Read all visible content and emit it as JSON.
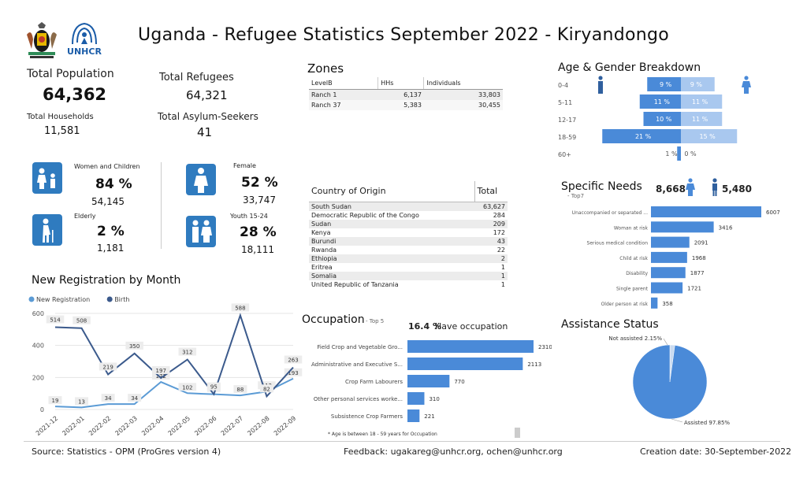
{
  "header": {
    "title": "Uganda - Refugee Statistics September 2022 - Kiryandongo",
    "logo_unhcr": "UNHCR"
  },
  "kpis": {
    "total_population_label": "Total Population",
    "total_population": "64,362",
    "total_refugees_label": "Total Refugees",
    "total_refugees": "64,321",
    "total_households_label": "Total Households",
    "total_households": "11,581",
    "asylum_label": "Total Asylum-Seekers",
    "asylum": "41"
  },
  "groups": {
    "women_children_label": "Women and Children",
    "women_children_pct": "84 %",
    "women_children_count": "54,145",
    "elderly_label": "Elderly",
    "elderly_pct": "2 %",
    "elderly_count": "1,181",
    "female_label": "Female",
    "female_pct": "52 %",
    "female_count": "33,747",
    "youth_label": "Youth 15-24",
    "youth_pct": "28 %",
    "youth_count": "18,111"
  },
  "zones": {
    "title": "Zones",
    "headers": [
      "LevelB",
      "HHs",
      "Individuals"
    ],
    "rows": [
      [
        "Ranch 1",
        "6,137",
        "33,803"
      ],
      [
        "Ranch 37",
        "5,383",
        "30,455"
      ]
    ]
  },
  "origin": {
    "headers": [
      "Country of Origin",
      "Total"
    ],
    "rows": [
      [
        "South Sudan",
        "63,627"
      ],
      [
        "Democratic Republic of the Congo",
        "284"
      ],
      [
        "Sudan",
        "209"
      ],
      [
        "Kenya",
        "172"
      ],
      [
        "Burundi",
        "43"
      ],
      [
        "Rwanda",
        "22"
      ],
      [
        "Ethiopia",
        "2"
      ],
      [
        "Eritrea",
        "1"
      ],
      [
        "Somalia",
        "1"
      ],
      [
        "United Republic of Tanzania",
        "1"
      ]
    ]
  },
  "footer": {
    "source": "Source: Statistics - OPM (ProGres version 4)",
    "feedback": "Feedback: ugakareg@unhcr.org, ochen@unhcr.org",
    "created": "Creation date: 30-September-2022"
  },
  "colors": {
    "blue": "#4a8ad8",
    "light_blue": "#a9c8ef",
    "dark_line": "#3b5a8c",
    "icon_blue": "#2f7bbf"
  },
  "chart_data": [
    {
      "type": "line",
      "title": "New Registration by Month",
      "categories": [
        "2021-12",
        "2022-01",
        "2022-02",
        "2022-03",
        "2022-04",
        "2022-05",
        "2022-06",
        "2022-07",
        "2022-08",
        "2022-09"
      ],
      "series": [
        {
          "name": "New Registration",
          "values": [
            19,
            13,
            34,
            34,
            172,
            102,
            95,
            88,
            112,
            193
          ]
        },
        {
          "name": "Birth",
          "values": [
            514,
            508,
            219,
            350,
            197,
            312,
            95,
            588,
            82,
            263
          ]
        }
      ],
      "ylim": [
        0,
        600
      ],
      "yticks": [
        0,
        200,
        400,
        600
      ],
      "legend": "top-left"
    },
    {
      "type": "bar",
      "title": "Age & Gender Breakdown",
      "categories": [
        "0-4",
        "5-11",
        "12-17",
        "18-59",
        "60+"
      ],
      "series": [
        {
          "name": "Male",
          "values": [
            9,
            11,
            10,
            21,
            1
          ],
          "labels": [
            "9 %",
            "11 %",
            "10 %",
            "21 %",
            "1 %"
          ]
        },
        {
          "name": "Female",
          "values": [
            9,
            11,
            11,
            15,
            0
          ],
          "labels": [
            "9 %",
            "11 %",
            "11 %",
            "15 %",
            "0 %"
          ]
        }
      ]
    },
    {
      "type": "bar",
      "title": "Specific Needs",
      "subtitle": "- Top7",
      "female_total": "8,668",
      "male_total": "5,480",
      "categories": [
        "Unaccompanied or separated ...",
        "Woman at risk",
        "Serious medical condition",
        "Child at risk",
        "Disability",
        "Single parent",
        "Older person at risk"
      ],
      "values": [
        6007,
        3416,
        2091,
        1968,
        1877,
        1721,
        358
      ]
    },
    {
      "type": "bar",
      "title": "Occupation",
      "subtitle": "- Top 5",
      "occupation_rate": "16.4 %",
      "occupation_text": "Have occupation",
      "note": "* Age is between 18 - 59 years for Occupation",
      "categories": [
        "Field Crop and Vegetable Gro...",
        "Administrative and Executive S...",
        "Crop Farm Labourers",
        "Other personal services worke...",
        "Subsistence Crop Farmers"
      ],
      "values": [
        2310,
        2113,
        770,
        310,
        221
      ]
    },
    {
      "type": "pie",
      "title": "Assistance Status",
      "categories": [
        "Not assisted",
        "Assisted"
      ],
      "values": [
        2.15,
        97.85
      ],
      "labels": [
        "Not assisted 2.15%",
        "Assisted 97.85%"
      ]
    }
  ]
}
